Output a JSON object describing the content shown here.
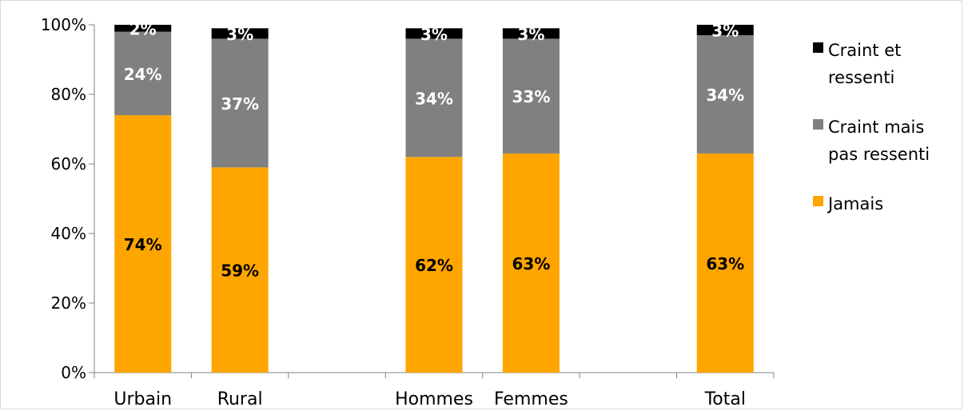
{
  "chart_data": {
    "type": "bar",
    "stacked": true,
    "categories": [
      "Urbain",
      "Rural",
      "",
      "Hommes",
      "Femmes",
      "",
      "Total"
    ],
    "series": [
      {
        "name": "Jamais",
        "color": "#FFA500",
        "label_color": "#000000",
        "values": [
          74,
          59,
          null,
          62,
          63,
          null,
          63
        ],
        "labels": [
          "74%",
          "59%",
          "",
          "62%",
          "63%",
          "",
          "63%"
        ]
      },
      {
        "name": "Craint mais pas ressenti",
        "color": "#808080",
        "label_color": "#ffffff",
        "values": [
          24,
          37,
          null,
          34,
          33,
          null,
          34
        ],
        "labels": [
          "24%",
          "37%",
          "",
          "34%",
          "33%",
          "",
          "34%"
        ]
      },
      {
        "name": "Craint et ressenti",
        "color": "#000000",
        "label_color": "#ffffff",
        "values": [
          2,
          3,
          null,
          3,
          3,
          null,
          3
        ],
        "labels": [
          "2%",
          "3%",
          "",
          "3%",
          "3%",
          "",
          "3%"
        ]
      }
    ],
    "ylim": [
      0,
      100
    ],
    "yticks": [
      "0%",
      "20%",
      "40%",
      "60%",
      "80%",
      "100%"
    ],
    "grid": false,
    "legend_position": "right",
    "legend": [
      {
        "lines": [
          "Craint et",
          "ressenti"
        ],
        "color": "#000000"
      },
      {
        "lines": [
          "Craint mais",
          "pas ressenti"
        ],
        "color": "#808080"
      },
      {
        "lines": [
          "Jamais"
        ],
        "color": "#FFA500"
      }
    ]
  }
}
